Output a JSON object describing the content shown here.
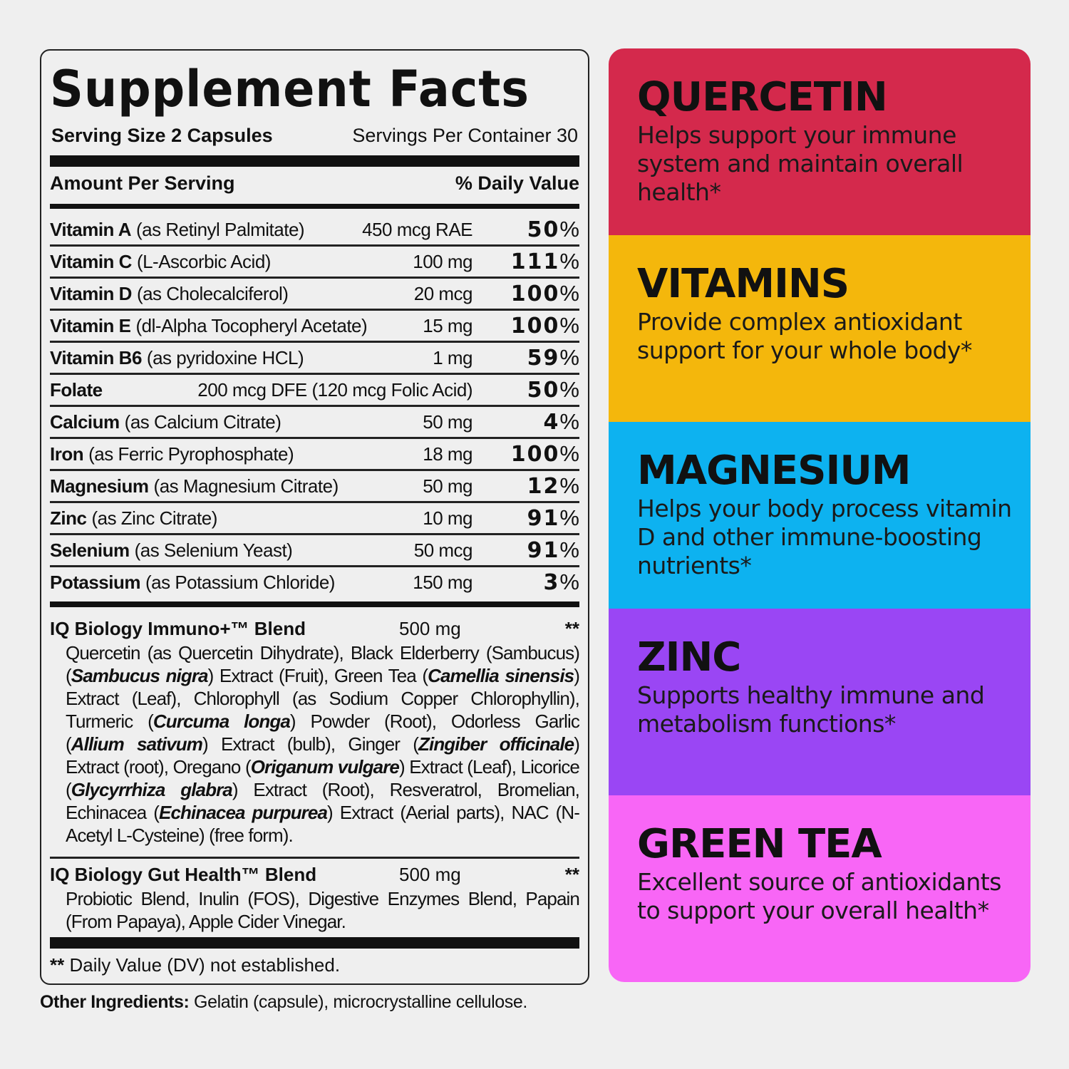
{
  "label": {
    "title": "Supplement Facts",
    "serving_size": "Serving Size 2 Capsules",
    "servings_per_container": "Servings Per Container 30",
    "amount_per_serving": "Amount Per Serving",
    "daily_value": "% Daily Value",
    "nutrients": [
      {
        "name": "Vitamin A",
        "detail": "(as Retinyl Palmitate)",
        "amount": "450 mcg RAE",
        "dv": "50",
        "pct": "%"
      },
      {
        "name": "Vitamin C",
        "detail": "(L-Ascorbic Acid)",
        "amount": "100 mg",
        "dv": "111",
        "pct": "%"
      },
      {
        "name": "Vitamin D",
        "detail": "(as Cholecalciferol)",
        "amount": "20 mcg",
        "dv": "100",
        "pct": "%"
      },
      {
        "name": "Vitamin E",
        "detail": "(dl-Alpha Tocopheryl Acetate)",
        "amount": "15 mg",
        "dv": "100",
        "pct": "%"
      },
      {
        "name": "Vitamin B6",
        "detail": "(as pyridoxine HCL)",
        "amount": "1 mg",
        "dv": "59",
        "pct": "%"
      },
      {
        "name": "Folate",
        "detail": "",
        "amount": "200 mcg DFE (120 mcg Folic Acid)",
        "dv": "50",
        "pct": "%"
      },
      {
        "name": "Calcium",
        "detail": "(as Calcium Citrate)",
        "amount": "50 mg",
        "dv": "4",
        "pct": "%"
      },
      {
        "name": "Iron",
        "detail": "(as Ferric Pyrophosphate)",
        "amount": "18 mg",
        "dv": "100",
        "pct": "%"
      },
      {
        "name": "Magnesium",
        "detail": "(as Magnesium Citrate)",
        "amount": "50 mg",
        "dv": "12",
        "pct": "%"
      },
      {
        "name": "Zinc",
        "detail": "(as Zinc Citrate)",
        "amount": "10 mg",
        "dv": "91",
        "pct": "%"
      },
      {
        "name": "Selenium",
        "detail": "(as Selenium Yeast)",
        "amount": "50 mcg",
        "dv": "91",
        "pct": "%"
      },
      {
        "name": "Potassium",
        "detail": "(as Potassium  Chloride)",
        "amount": "150 mg",
        "dv": "3",
        "pct": "%"
      }
    ],
    "blends": [
      {
        "name": "IQ Biology Immuno+™ Blend",
        "amount": "500 mg",
        "dv": "**",
        "segments": [
          {
            "t": "Quercetin (as Quercetin Dihydrate), Black Elderberry (Sambucus) ("
          },
          {
            "t": "Sambucus nigra",
            "i": true
          },
          {
            "t": ") Extract (Fruit), Green Tea ("
          },
          {
            "t": "Camellia sinensis",
            "i": true
          },
          {
            "t": ") Extract (Leaf), Chlorophyll (as Sodium Copper Chlorophyllin), Turmeric ("
          },
          {
            "t": "Curcuma longa",
            "i": true
          },
          {
            "t": ") Powder (Root), Odorless Garlic ("
          },
          {
            "t": "Allium sativum",
            "i": true
          },
          {
            "t": ") Extract (bulb), Ginger ("
          },
          {
            "t": "Zingiber officinale",
            "i": true
          },
          {
            "t": ") Extract (root), Oregano ("
          },
          {
            "t": "Origanum vulgare",
            "i": true
          },
          {
            "t": ") Extract (Leaf), Licorice ("
          },
          {
            "t": "Glycyrrhiza glabra",
            "i": true
          },
          {
            "t": ") Extract (Root), Resveratrol, Bromelian, Echinacea ("
          },
          {
            "t": "Echinacea purpurea",
            "i": true
          },
          {
            "t": ") Extract (Aerial parts), NAC (N-Acetyl L-Cysteine) (free form)."
          }
        ]
      },
      {
        "name": "IQ Biology Gut Health™ Blend",
        "amount": "500 mg",
        "dv": "**",
        "segments": [
          {
            "t": "Probiotic Blend, Inulin (FOS), Digestive Enzymes Blend, Papain (From Papaya), Apple Cider Vinegar."
          }
        ]
      }
    ],
    "footnote_mark": "**",
    "footnote": " Daily Value (DV) not established.",
    "other_label": "Other Ingredients:",
    "other_text": " Gelatin (capsule), microcrystalline cellulose."
  },
  "highlights": [
    {
      "title": "QUERCETIN",
      "text": "Helps support your immune system and maintain overall health*",
      "color": "#d4294c"
    },
    {
      "title": "VITAMINS",
      "text": "Provide complex antioxidant support for your whole body*",
      "color": "#f4b70c"
    },
    {
      "title": "MAGNESIUM",
      "text": "Helps your body process vitamin D and other immune-boosting nutrients*",
      "color": "#0db2f0"
    },
    {
      "title": "ZINC",
      "text": "Supports healthy immune and metabolism functions*",
      "color": "#9a46f4"
    },
    {
      "title": "GREEN TEA",
      "text": "Excellent source of antioxidants to support your overall health*",
      "color": "#f866f6"
    }
  ]
}
